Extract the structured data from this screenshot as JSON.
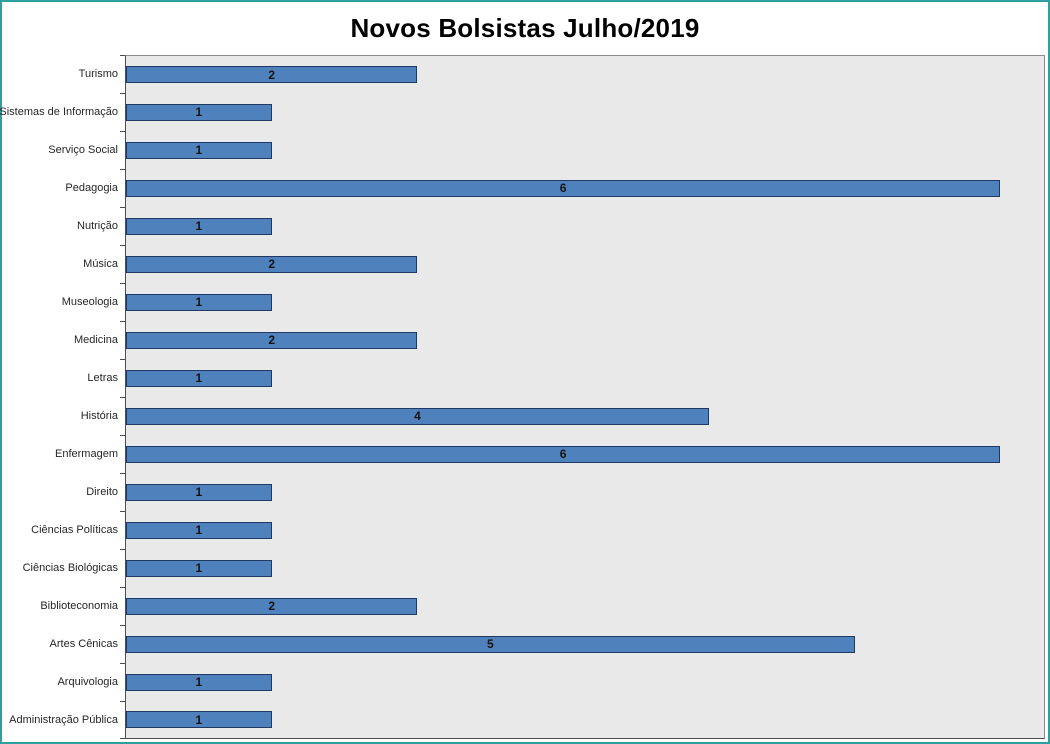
{
  "chart_data": {
    "type": "bar",
    "orientation": "horizontal",
    "title": "Novos Bolsistas Julho/2019",
    "xlabel": "",
    "ylabel": "",
    "categories": [
      "Turismo",
      "Sistemas de Informação",
      "Serviço Social",
      "Pedagogia",
      "Nutrição",
      "Música",
      "Museologia",
      "Medicina",
      "Letras",
      "História",
      "Enfermagem",
      "Direito",
      "Ciências Políticas",
      "Ciências Biológicas",
      "Biblioteconomia",
      "Artes Cênicas",
      "Arquivologia",
      "Administração Pública"
    ],
    "values": [
      2,
      1,
      1,
      6,
      1,
      2,
      1,
      2,
      1,
      4,
      6,
      1,
      1,
      1,
      2,
      5,
      1,
      1
    ],
    "xlim": [
      0,
      6.3
    ],
    "grid": false,
    "legend": false,
    "data_labels": true,
    "bar_color": "#4f81bd",
    "bar_border_color": "#1f3864",
    "plot_bg": "#e9e9e9",
    "frame_border_color": "#2e9e9e"
  }
}
